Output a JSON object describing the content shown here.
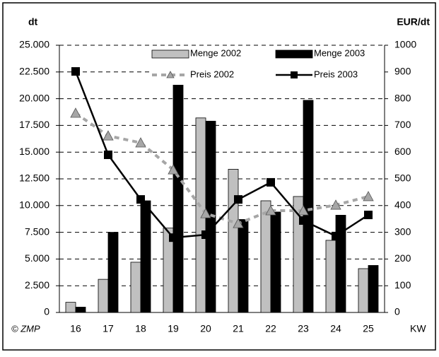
{
  "chart_data": {
    "type": "bar",
    "y_label": "dt",
    "y2_label": "EUR/dt",
    "source": "© ZMP",
    "x_label": "KW",
    "categories": [
      "16",
      "17",
      "18",
      "19",
      "20",
      "21",
      "22",
      "23",
      "24",
      "25"
    ],
    "series": [
      {
        "name": "Menge 2002",
        "type": "bar",
        "color": "#c0c0c0",
        "values": [
          950,
          3100,
          4700,
          7900,
          18200,
          13400,
          10450,
          10850,
          6750,
          4100
        ]
      },
      {
        "name": "Menge 2003",
        "type": "bar",
        "color": "#000000",
        "values": [
          500,
          7500,
          10450,
          21500,
          17900,
          8700,
          9400,
          19850,
          9100,
          4400
        ]
      },
      {
        "name": "Preis 2002",
        "type": "line",
        "axis": "y2",
        "color": "#a6a6a6",
        "dashed": true,
        "marker": "triangle",
        "values": [
          746,
          661,
          635,
          534,
          370,
          333,
          381,
          381,
          402,
          434
        ]
      },
      {
        "name": "Preis 2003",
        "type": "line",
        "axis": "y2",
        "color": "#000000",
        "dashed": false,
        "marker": "square",
        "values": [
          902,
          590,
          423,
          280,
          291,
          423,
          487,
          344,
          286,
          365
        ]
      }
    ],
    "ylim": [
      0,
      25000
    ],
    "yticks": [
      {
        "value": 0,
        "label": "0"
      },
      {
        "value": 2500,
        "label": "2.500"
      },
      {
        "value": 5000,
        "label": "5.000"
      },
      {
        "value": 7500,
        "label": "7.500"
      },
      {
        "value": 10000,
        "label": "10.000"
      },
      {
        "value": 12500,
        "label": "12.500"
      },
      {
        "value": 15000,
        "label": "15.000"
      },
      {
        "value": 17500,
        "label": "17.500"
      },
      {
        "value": 20000,
        "label": "20.000"
      },
      {
        "value": 22500,
        "label": "22.500"
      },
      {
        "value": 25000,
        "label": "25.000"
      }
    ],
    "y2lim": [
      0,
      1000
    ],
    "y2ticks": [
      0,
      100,
      200,
      300,
      400,
      500,
      600,
      700,
      800,
      900,
      1000
    ],
    "grid": true
  }
}
